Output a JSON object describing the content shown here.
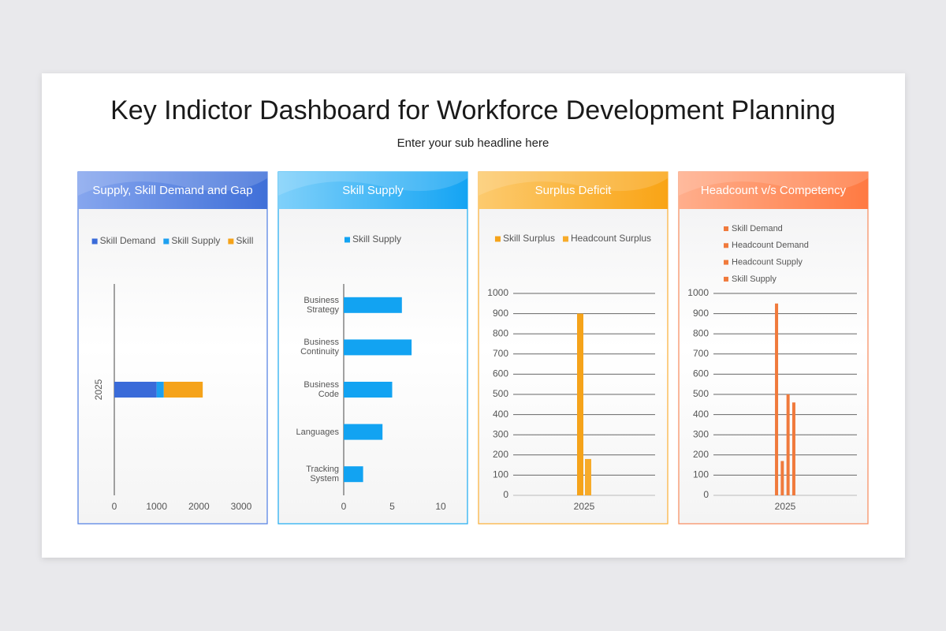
{
  "title": "Key Indictor Dashboard for Workforce Development Planning",
  "subtitle": "Enter your sub headline here",
  "chart_data": [
    {
      "type": "bar",
      "orientation": "horizontal",
      "stacked": true,
      "title": "Supply, Skill Demand and Gap",
      "categories": [
        "2025"
      ],
      "series": [
        {
          "name": "Skill Demand",
          "color": "#3a6bd9",
          "values": [
            1000
          ]
        },
        {
          "name": "Skill Supply",
          "color": "#1ea0f0",
          "values": [
            170
          ]
        },
        {
          "name": "Skill",
          "color": "#f5a31a",
          "values": [
            920
          ]
        }
      ],
      "xlim": [
        0,
        3000
      ],
      "xticks": [
        0,
        1000,
        2000,
        3000
      ],
      "grid": false
    },
    {
      "type": "bar",
      "orientation": "horizontal",
      "stacked": false,
      "title": "Skill Supply",
      "categories": [
        "Business Strategy",
        "Business Continuity",
        "Business Code",
        "Languages",
        "Tracking System"
      ],
      "series": [
        {
          "name": "Skill Supply",
          "color": "#12a3f2",
          "values": [
            6,
            7,
            5,
            4,
            2
          ]
        }
      ],
      "xlim": [
        0,
        10
      ],
      "xticks": [
        0,
        5,
        10
      ],
      "grid": false
    },
    {
      "type": "bar",
      "orientation": "vertical",
      "stacked": false,
      "title": "Surplus Deficit",
      "categories": [
        "2025"
      ],
      "series": [
        {
          "name": "Skill Surplus",
          "color": "#f5a31a",
          "values": [
            900
          ]
        },
        {
          "name": "Headcount Surplus",
          "color": "#f7ab2a",
          "values": [
            180
          ]
        }
      ],
      "ylim": [
        0,
        1000
      ],
      "yticks": [
        0,
        100,
        200,
        300,
        400,
        500,
        600,
        700,
        800,
        900,
        1000
      ],
      "grid": true
    },
    {
      "type": "bar",
      "orientation": "vertical",
      "stacked": false,
      "title": "Headcount v/s Competency",
      "categories": [
        "2025"
      ],
      "series": [
        {
          "name": "Skill Demand",
          "color": "#f07a3c",
          "values": [
            950
          ]
        },
        {
          "name": "Headcount Demand",
          "color": "#f07a3c",
          "values": [
            170
          ]
        },
        {
          "name": "Headcount Supply",
          "color": "#f07a3c",
          "values": [
            500
          ]
        },
        {
          "name": "Skill Supply",
          "color": "#f07a3c",
          "values": [
            460
          ]
        }
      ],
      "ylim": [
        0,
        1000
      ],
      "yticks": [
        0,
        100,
        200,
        300,
        400,
        500,
        600,
        700,
        800,
        900,
        1000
      ],
      "grid": true
    }
  ]
}
